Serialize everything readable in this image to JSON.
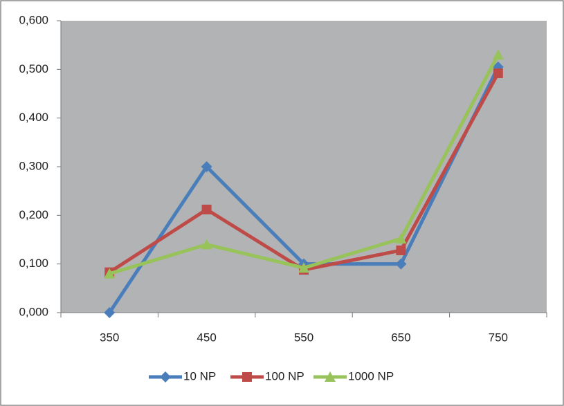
{
  "chart_data": {
    "type": "line",
    "categories": [
      "350",
      "450",
      "550",
      "650",
      "750"
    ],
    "series": [
      {
        "name": "10 NP",
        "color": "#4a7ebb",
        "marker": "diamond",
        "values": [
          0.0,
          0.3,
          0.1,
          0.1,
          0.505
        ]
      },
      {
        "name": "100 NP",
        "color": "#be4b48",
        "marker": "square",
        "values": [
          0.083,
          0.212,
          0.088,
          0.128,
          0.492
        ]
      },
      {
        "name": "1000 NP",
        "color": "#98c25a",
        "marker": "triangle",
        "values": [
          0.08,
          0.14,
          0.092,
          0.152,
          0.53
        ]
      }
    ],
    "ylim": [
      0,
      0.6
    ],
    "yticks": [
      {
        "value": 0,
        "label": "0,000"
      },
      {
        "value": 0.1,
        "label": "0,100"
      },
      {
        "value": 0.2,
        "label": "0,200"
      },
      {
        "value": 0.3,
        "label": "0,300"
      },
      {
        "value": 0.4,
        "label": "0,400"
      },
      {
        "value": 0.5,
        "label": "0,500"
      },
      {
        "value": 0.6,
        "label": "0,600"
      }
    ],
    "legend": "bottom"
  }
}
